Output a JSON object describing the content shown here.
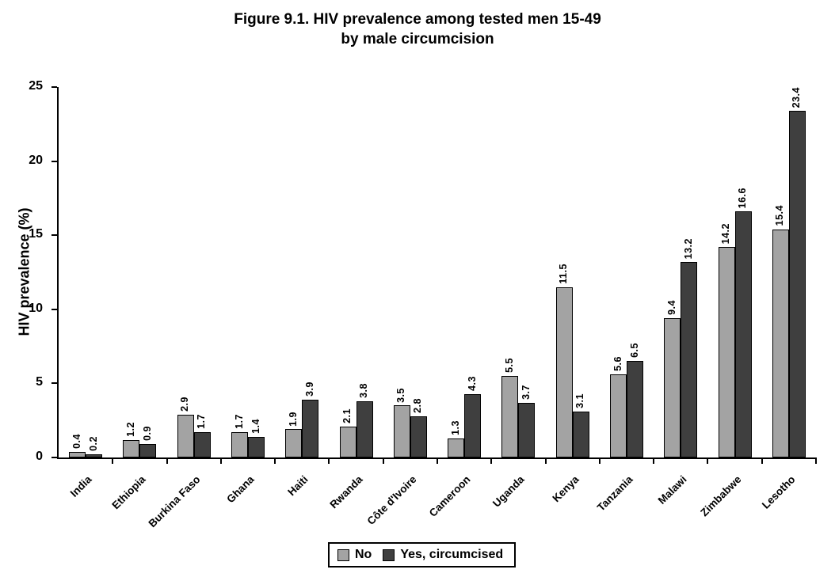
{
  "title": {
    "line1": "Figure 9.1. HIV prevalence among tested men 15-49",
    "line2": "by male circumcision"
  },
  "colors": {
    "bar_no": "#a3a3a3",
    "bar_yes": "#3f3f3f",
    "axis": "#000000",
    "background": "#ffffff"
  },
  "chart_data": {
    "type": "bar",
    "title": "Figure 9.1. HIV prevalence among tested men 15-49 by male circumcision",
    "xlabel": "",
    "ylabel": "HIV prevalence (%)",
    "ylim": [
      0,
      25
    ],
    "yticks": [
      0,
      5,
      10,
      15,
      20,
      25
    ],
    "grid": false,
    "value_labels": true,
    "legend_position": "bottom",
    "categories": [
      "India",
      "Ethiopia",
      "Burkina Faso",
      "Ghana",
      "Haiti",
      "Rwanda",
      "Côte d'Ivoire",
      "Cameroon",
      "Uganda",
      "Kenya",
      "Tanzania",
      "Malawi",
      "Zimbabwe",
      "Lesotho"
    ],
    "series": [
      {
        "name": "No",
        "color": "#a3a3a3",
        "values": [
          0.4,
          1.2,
          2.9,
          1.7,
          1.9,
          2.1,
          3.5,
          1.3,
          5.5,
          11.5,
          5.6,
          9.4,
          14.2,
          15.4
        ]
      },
      {
        "name": "Yes, circumcised",
        "color": "#3f3f3f",
        "values": [
          0.2,
          0.9,
          1.7,
          1.4,
          3.9,
          3.8,
          2.8,
          4.3,
          3.7,
          3.1,
          6.5,
          13.2,
          16.6,
          23.4
        ]
      }
    ]
  }
}
